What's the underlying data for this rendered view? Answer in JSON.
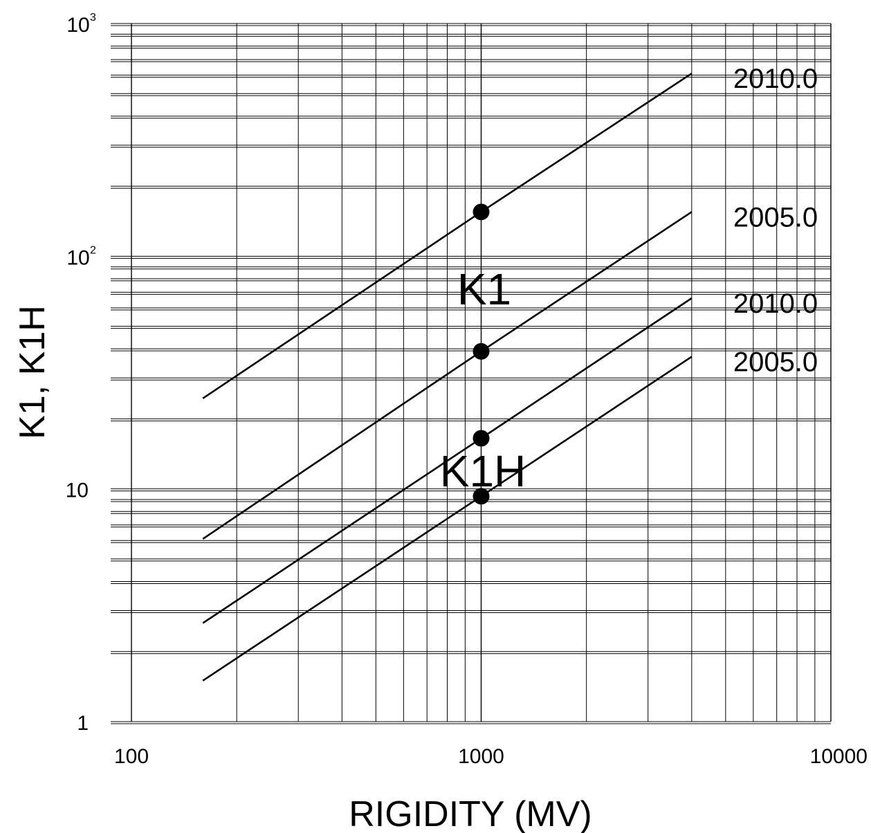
{
  "chart_data": {
    "type": "line",
    "title": "",
    "xlabel": "RIGIDITY (MV)",
    "ylabel": "K1, K1H",
    "xscale": "log",
    "yscale": "log",
    "xlim": [
      100,
      10000
    ],
    "ylim": [
      1,
      1000
    ],
    "grid": true,
    "x_ticks": [
      {
        "value": 100,
        "label": "100"
      },
      {
        "value": 1000,
        "label": "1000"
      },
      {
        "value": 10000,
        "label": "10000"
      }
    ],
    "y_ticks": [
      {
        "value": 1,
        "label": "1",
        "base": "",
        "exp": ""
      },
      {
        "value": 10,
        "label": "10",
        "base": "",
        "exp": ""
      },
      {
        "value": 100,
        "label": "",
        "base": "10",
        "exp": "2"
      },
      {
        "value": 1000,
        "label": "",
        "base": "10",
        "exp": "3"
      }
    ],
    "series": [
      {
        "name": "2010.0",
        "group": "K1",
        "x": [
          160,
          1000,
          4000
        ],
        "y": [
          24.5,
          155,
          610
        ],
        "marker_x": 1000,
        "marker_y": 155
      },
      {
        "name": "2005.0",
        "group": "K1",
        "x": [
          160,
          1000,
          4000
        ],
        "y": [
          6.1,
          39,
          155
        ],
        "marker_x": 1000,
        "marker_y": 39
      },
      {
        "name": "2010.0",
        "group": "K1H",
        "x": [
          160,
          1000,
          4000
        ],
        "y": [
          2.65,
          16.5,
          66
        ],
        "marker_x": 1000,
        "marker_y": 16.5
      },
      {
        "name": "2005.0",
        "group": "K1H",
        "x": [
          160,
          1000,
          4000
        ],
        "y": [
          1.5,
          9.3,
          37
        ],
        "marker_x": 1000,
        "marker_y": 9.3
      }
    ],
    "annotations": [
      "K1",
      "K1H"
    ]
  },
  "colors": {
    "line": "#000000",
    "grid": "#000000",
    "background": "#ffffff"
  }
}
